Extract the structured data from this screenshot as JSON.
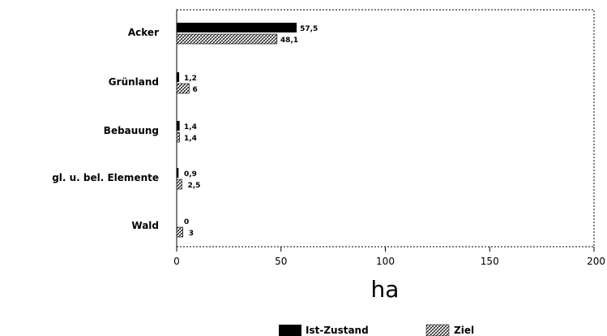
{
  "chart_data": {
    "type": "bar",
    "orientation": "horizontal",
    "categories": [
      "Acker",
      "Grünland",
      "Bebauung",
      "gl. u. bel. Elemente",
      "Wald"
    ],
    "series": [
      {
        "name": "Ist-Zustand",
        "values": [
          57.5,
          1.2,
          1.4,
          0.9,
          0
        ],
        "labels": [
          "57,5",
          "1,2",
          "1,4",
          "0,9",
          "0"
        ],
        "color": "#000000"
      },
      {
        "name": "Ziel",
        "values": [
          48.1,
          6,
          1.4,
          2.5,
          3
        ],
        "labels": [
          "48,1",
          "6",
          "1,4",
          "2,5",
          "3"
        ],
        "color": "hatched"
      }
    ],
    "xlabel": "ha",
    "xlim": [
      0,
      200
    ],
    "xticks": [
      "0",
      "50",
      "100",
      "150",
      "200"
    ],
    "grid": false,
    "legend": "bottom-center"
  }
}
